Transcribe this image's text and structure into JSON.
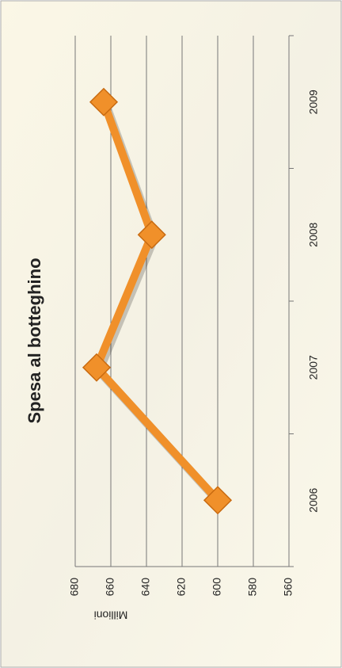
{
  "chart_data": {
    "type": "line",
    "title": "Spesa al botteghino",
    "y_label": "Millioni",
    "categories": [
      "2006",
      "2007",
      "2008",
      "2009"
    ],
    "values": [
      600,
      668,
      637,
      664
    ],
    "color": "#f0902a",
    "ylim": [
      560,
      680
    ],
    "yticks": [
      560,
      580,
      600,
      620,
      640,
      660,
      680
    ],
    "grid": true
  }
}
